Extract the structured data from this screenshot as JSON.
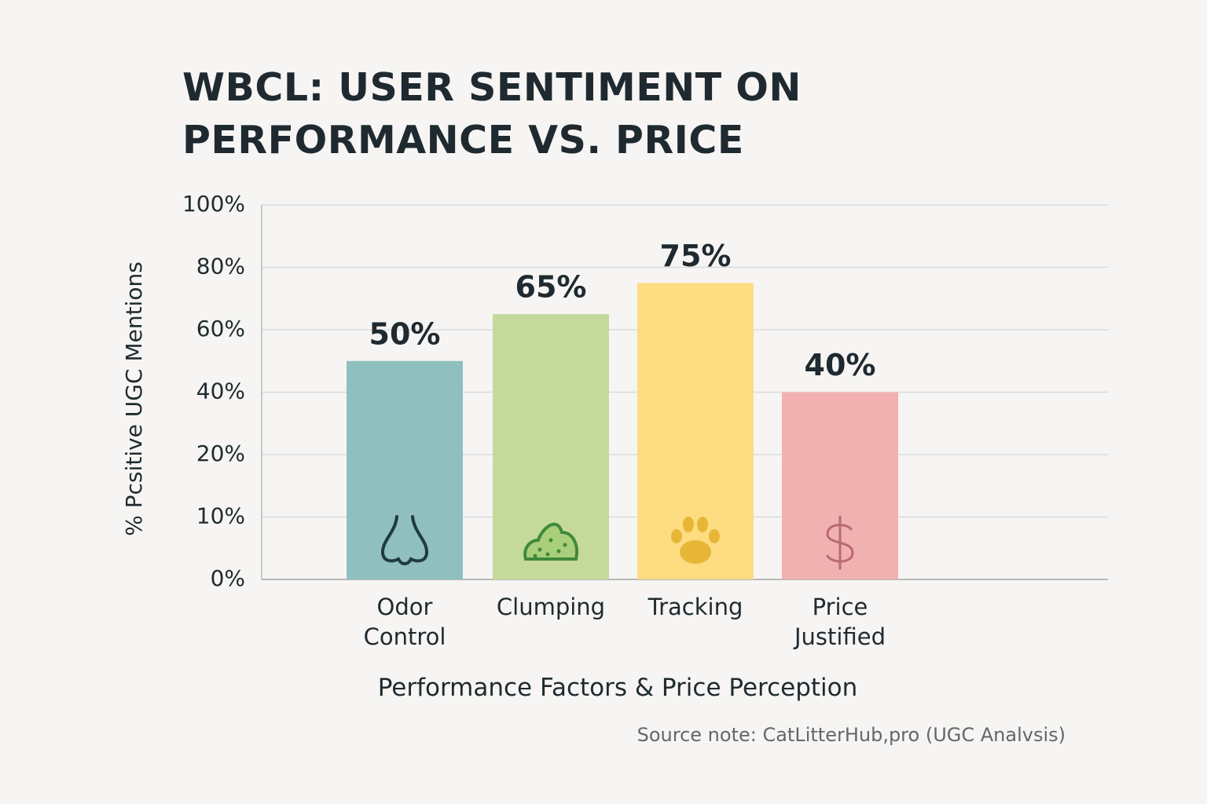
{
  "chart_data": {
    "type": "bar",
    "title": "WBCL: USER SENTIMENT ON PERFORMANCE VS. PRICE",
    "y_label": "% Pcsitive UGC Mentions",
    "x_label": "Performance Factors & Price Perception",
    "source": "Source note: CatLitterHub,pro (UGC Analvsis)",
    "categories": [
      "Odor Control",
      "Clumping",
      "Tracking",
      "Price Justified"
    ],
    "values": [
      50,
      65,
      75,
      40
    ],
    "value_labels": [
      "50%",
      "65%",
      "75%",
      "40%"
    ],
    "colors": [
      "#8fbfbf",
      "#c5da9a",
      "#fddc82",
      "#f0b1b0"
    ],
    "ylim": [
      0,
      100
    ],
    "yticks": [
      {
        "value": 0,
        "label": "0%"
      },
      {
        "value": 10,
        "label": "10%"
      },
      {
        "value": 20,
        "label": "20%"
      },
      {
        "value": 40,
        "label": "40%"
      },
      {
        "value": 60,
        "label": "60%"
      },
      {
        "value": 80,
        "label": "80%"
      },
      {
        "value": 100,
        "label": "100%"
      }
    ],
    "grid": true
  }
}
